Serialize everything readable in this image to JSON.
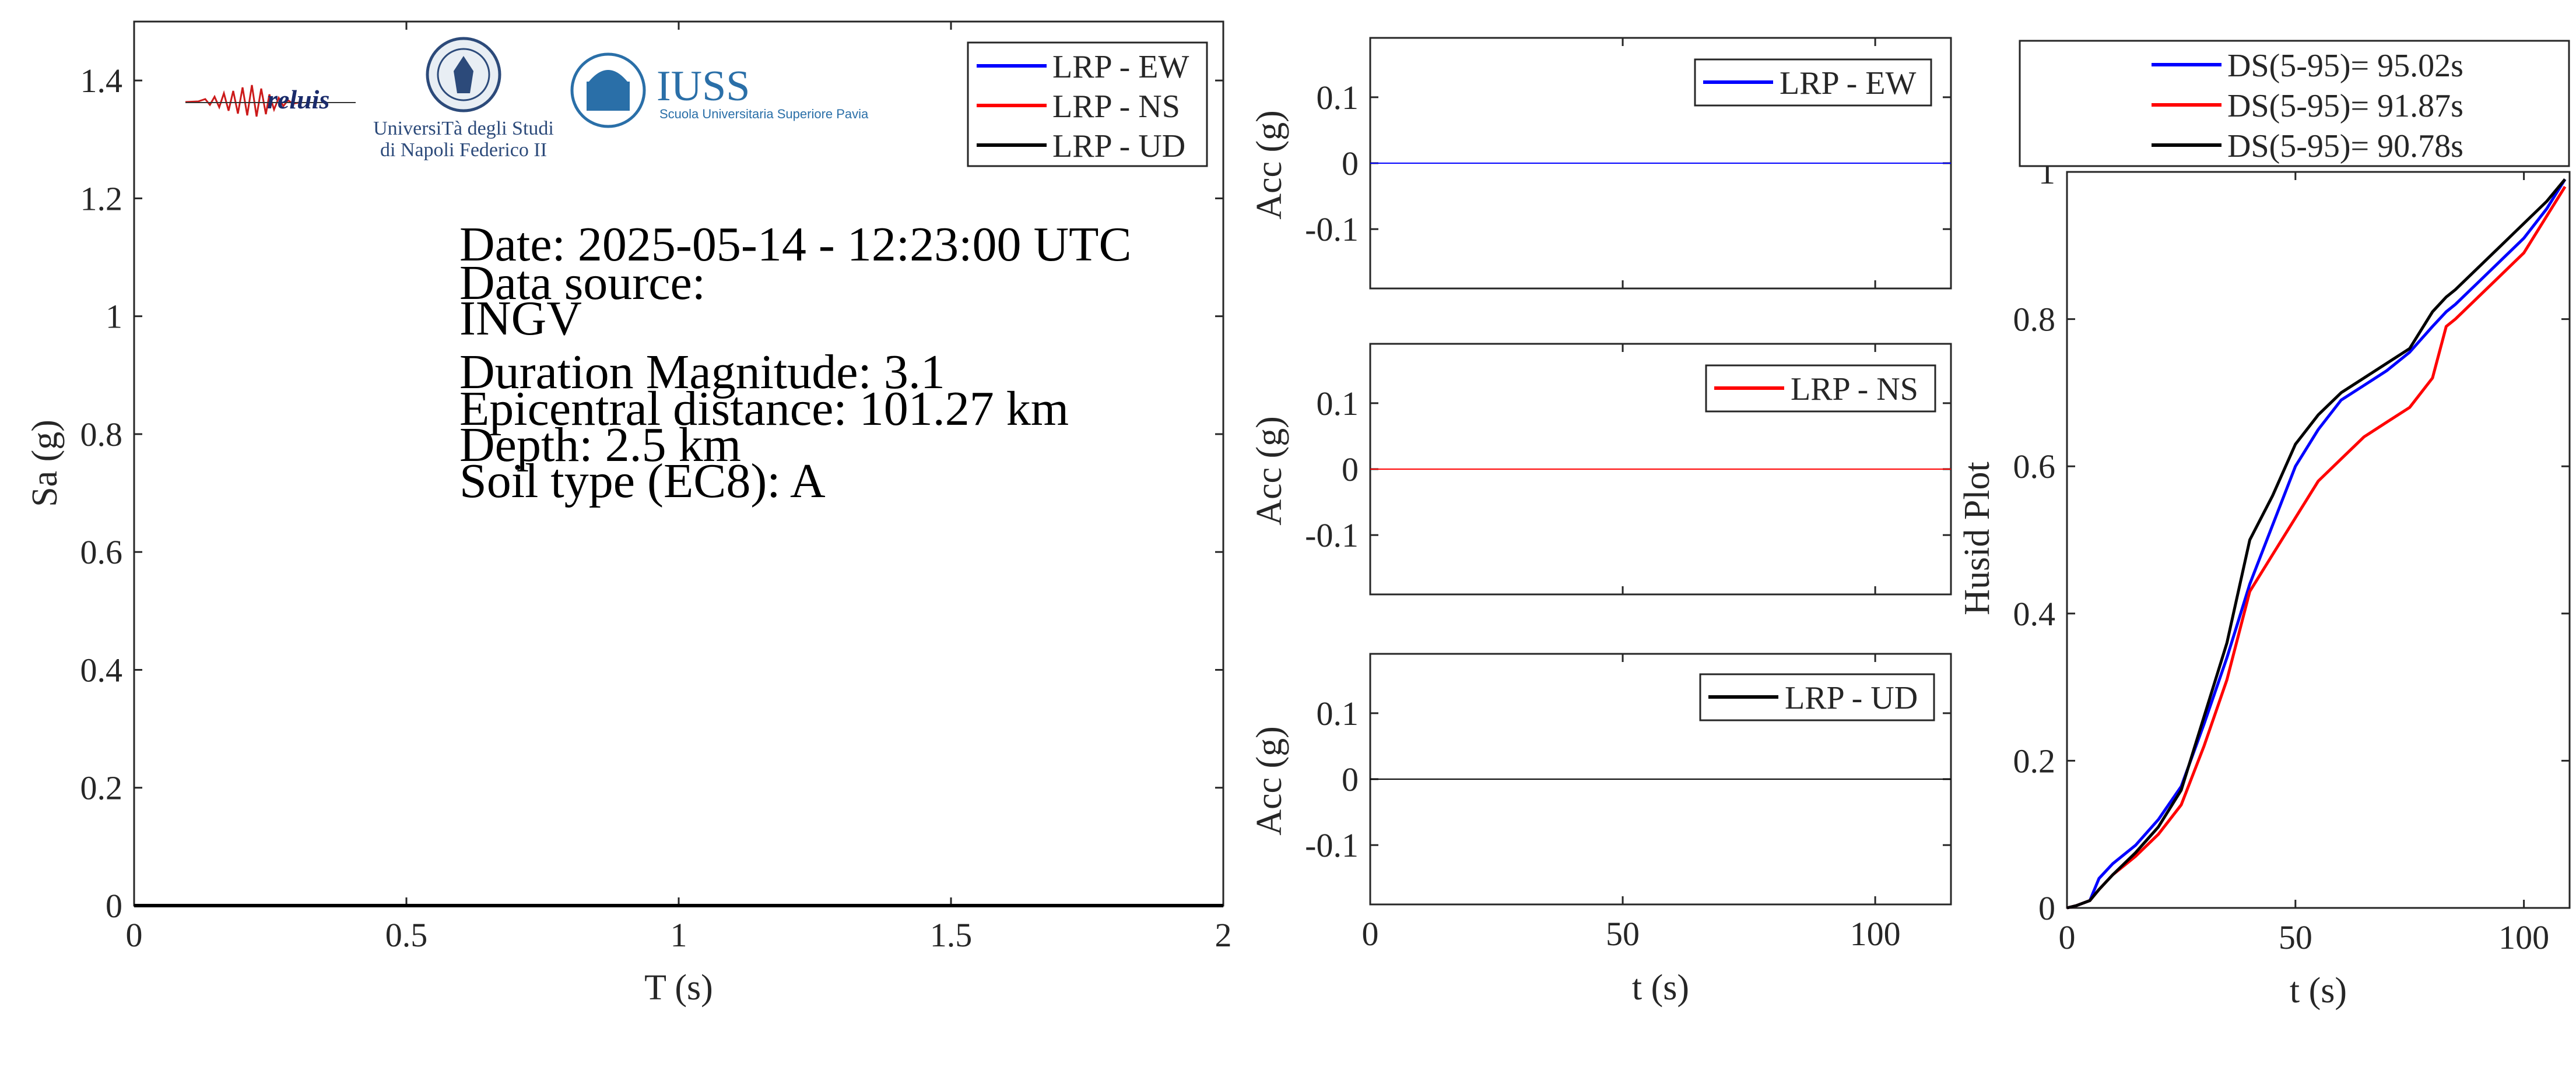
{
  "chart_data": [
    {
      "type": "line",
      "xlabel": "T (s)",
      "ylabel": "Sa (g)",
      "xlim": [
        0,
        2
      ],
      "ylim": [
        0,
        1.5
      ],
      "xticks": [
        "0",
        "0.5",
        "1",
        "1.5",
        "2"
      ],
      "yticks": [
        "0",
        "0.2",
        "0.4",
        "0.6",
        "0.8",
        "1",
        "1.2",
        "1.4"
      ],
      "legend_position": "top-right",
      "series": [
        {
          "name": "LRP - EW",
          "color": "#0000ff",
          "x": [
            0,
            2
          ],
          "y": [
            0.0,
            0.0
          ]
        },
        {
          "name": "LRP - NS",
          "color": "#ff0000",
          "x": [
            0,
            2
          ],
          "y": [
            0.0,
            0.0
          ]
        },
        {
          "name": "LRP - UD",
          "color": "#000000",
          "x": [
            0,
            2
          ],
          "y": [
            0.0,
            0.0
          ]
        }
      ],
      "annotations": {
        "date": "Date: 2025-05-14 - 12:23:00 UTC",
        "source_label": "Data source:",
        "source": "INGV",
        "magnitude": "Duration Magnitude: 3.1",
        "distance": "Epicentral distance: 101.27 km",
        "depth": "Depth: 2.5 km",
        "soil": "Soil type (EC8): A"
      },
      "logos": {
        "reluis": "reluis",
        "unina_line1": "UniversiTà degli Studi",
        "unina_line2": "di Napoli Federico II",
        "iuss": "IUSS",
        "iuss_sub": "Scuola Universitaria Superiore Pavia"
      }
    },
    {
      "type": "line",
      "xlabel": "",
      "ylabel": "Acc (g)",
      "xlim": [
        0,
        115
      ],
      "ylim": [
        -0.19,
        0.19
      ],
      "yticks": [
        "0.1",
        "0",
        "-0.1"
      ],
      "legend_position": "top-right",
      "series": [
        {
          "name": "LRP - EW",
          "color": "#0000ff",
          "x": [
            0,
            115
          ],
          "y": [
            0.0,
            0.0
          ]
        }
      ]
    },
    {
      "type": "line",
      "xlabel": "",
      "ylabel": "Acc (g)",
      "xlim": [
        0,
        115
      ],
      "ylim": [
        -0.19,
        0.19
      ],
      "yticks": [
        "0.1",
        "0",
        "-0.1"
      ],
      "legend_position": "top-right",
      "series": [
        {
          "name": "LRP - NS",
          "color": "#ff0000",
          "x": [
            0,
            115
          ],
          "y": [
            0.0,
            0.0
          ]
        }
      ]
    },
    {
      "type": "line",
      "xlabel": "t (s)",
      "ylabel": "Acc (g)",
      "xlim": [
        0,
        115
      ],
      "ylim": [
        -0.19,
        0.19
      ],
      "xticks": [
        "0",
        "50",
        "100"
      ],
      "yticks": [
        "0.1",
        "0",
        "-0.1"
      ],
      "legend_position": "top-right",
      "series": [
        {
          "name": "LRP - UD",
          "color": "#000000",
          "x": [
            0,
            115
          ],
          "y": [
            0.0,
            0.0
          ]
        }
      ]
    },
    {
      "type": "line",
      "xlabel": "t (s)",
      "ylabel": "Husid Plot",
      "xlim": [
        0,
        110
      ],
      "ylim": [
        0,
        1
      ],
      "xticks": [
        "0",
        "50",
        "100"
      ],
      "yticks": [
        "0",
        "0.2",
        "0.4",
        "0.6",
        "0.8",
        "1"
      ],
      "legend_position": "top (outside)",
      "series": [
        {
          "name": "DS(5-95)= 95.02s",
          "color": "#0000ff",
          "x": [
            0,
            2,
            5,
            7,
            10,
            15,
            20,
            25,
            30,
            35,
            40,
            45,
            50,
            55,
            60,
            65,
            70,
            75,
            80,
            83,
            85,
            90,
            95,
            100,
            105,
            109
          ],
          "y": [
            0,
            0.003,
            0.01,
            0.04,
            0.06,
            0.085,
            0.12,
            0.165,
            0.25,
            0.34,
            0.44,
            0.52,
            0.6,
            0.65,
            0.69,
            0.71,
            0.73,
            0.755,
            0.79,
            0.81,
            0.82,
            0.85,
            0.88,
            0.91,
            0.95,
            0.99
          ]
        },
        {
          "name": "DS(5-95)= 91.87s",
          "color": "#ff0000",
          "x": [
            0,
            2,
            5,
            7,
            10,
            15,
            20,
            25,
            30,
            35,
            40,
            45,
            50,
            55,
            60,
            65,
            70,
            75,
            80,
            83,
            85,
            90,
            95,
            100,
            105,
            109
          ],
          "y": [
            0,
            0.003,
            0.01,
            0.025,
            0.045,
            0.07,
            0.1,
            0.14,
            0.22,
            0.31,
            0.43,
            0.48,
            0.53,
            0.58,
            0.61,
            0.64,
            0.66,
            0.68,
            0.72,
            0.79,
            0.8,
            0.83,
            0.86,
            0.89,
            0.94,
            0.98
          ]
        },
        {
          "name": "DS(5-95)= 90.78s",
          "color": "#000000",
          "x": [
            0,
            2,
            5,
            7,
            10,
            15,
            20,
            25,
            30,
            35,
            40,
            45,
            50,
            55,
            60,
            65,
            70,
            75,
            80,
            83,
            85,
            90,
            95,
            100,
            105,
            109
          ],
          "y": [
            0,
            0.003,
            0.01,
            0.025,
            0.045,
            0.075,
            0.11,
            0.16,
            0.26,
            0.36,
            0.5,
            0.56,
            0.63,
            0.67,
            0.7,
            0.72,
            0.74,
            0.76,
            0.81,
            0.83,
            0.84,
            0.87,
            0.9,
            0.93,
            0.96,
            0.99
          ]
        }
      ]
    }
  ]
}
